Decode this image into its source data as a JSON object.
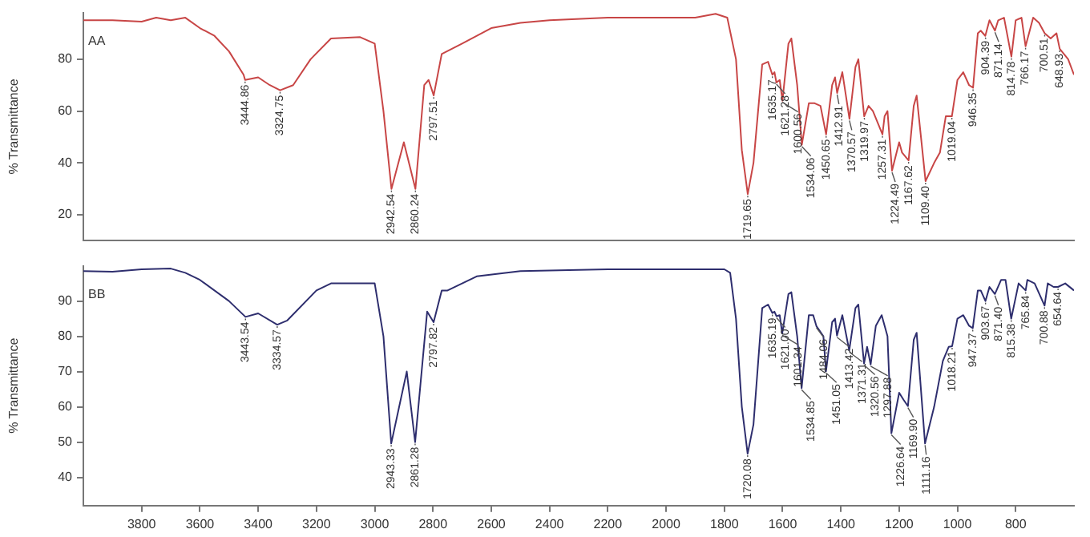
{
  "chart_data": [
    {
      "type": "line",
      "ylabel": "% Transmittance",
      "xlim": [
        4000,
        600
      ],
      "xticks": [
        3800,
        3600,
        3400,
        3200,
        3000,
        2800,
        2600,
        2400,
        2200,
        2000,
        1800,
        1600,
        1400,
        1200,
        1000,
        800
      ],
      "ylim": [
        10,
        98
      ],
      "yticks": [
        20,
        40,
        60,
        80
      ],
      "tick_labels": "y",
      "grid": false,
      "legend": false,
      "marker": "none",
      "line_style": "solid",
      "series": [
        {
          "color": "#c84646",
          "x": [
            4000,
            3900,
            3800,
            3750,
            3700,
            3650,
            3600,
            3550,
            3500,
            3450,
            3444.86,
            3400,
            3360,
            3324.75,
            3280,
            3220,
            3150,
            3050,
            3000,
            2970,
            2942.54,
            2900,
            2860.24,
            2830,
            2815,
            2797.51,
            2770,
            2700,
            2600,
            2500,
            2400,
            2200,
            2000,
            1900,
            1830,
            1790,
            1760,
            1740,
            1719.65,
            1700,
            1670,
            1650,
            1635.17,
            1628,
            1621.28,
            1610,
            1600.56,
            1580,
            1570,
            1550,
            1534.06,
            1510,
            1490,
            1470,
            1450.65,
            1430,
            1420,
            1412.91,
            1395,
            1370.57,
            1350,
            1340,
            1319.97,
            1305,
            1290,
            1257.31,
            1250,
            1240,
            1224.49,
            1200,
            1190,
            1167.62,
            1150,
            1140,
            1109.4,
            1080,
            1060,
            1040,
            1019.04,
            1000,
            980,
            960,
            946.35,
            930,
            920,
            904.39,
            890,
            871.14,
            860,
            840,
            814.78,
            800,
            780,
            766.17,
            740,
            720,
            700.51,
            680,
            660,
            648.93,
            620,
            600
          ],
          "values": [
            95,
            95,
            94.5,
            96,
            95,
            96,
            92,
            89,
            83,
            74,
            72,
            73,
            70,
            68,
            70,
            80,
            88,
            88.5,
            86,
            60,
            30,
            48,
            30,
            70,
            72,
            66,
            82,
            86,
            92,
            94,
            95,
            96,
            96,
            96,
            97.5,
            96,
            80,
            45,
            28,
            40,
            78,
            79,
            74,
            75,
            71,
            72,
            64,
            86,
            88,
            70,
            47,
            63,
            63,
            62,
            51,
            70,
            73,
            67,
            75,
            57,
            77,
            80,
            58,
            62,
            60,
            51,
            58,
            60,
            37,
            48,
            44,
            41,
            62,
            66,
            33,
            40,
            44,
            58,
            58,
            72,
            75,
            70,
            69,
            90,
            91,
            89,
            95,
            91,
            95,
            96,
            81,
            95,
            96,
            85,
            96,
            94,
            90,
            88,
            90,
            84,
            80,
            74
          ]
        }
      ],
      "annotations": [
        "AA",
        {
          "text": "3444.86",
          "x": 3444.86,
          "y": 72
        },
        {
          "text": "3324.75",
          "x": 3324.75,
          "y": 68
        },
        {
          "text": "2942.54",
          "x": 2942.54,
          "y": 30
        },
        {
          "text": "2860.24",
          "x": 2860.24,
          "y": 30
        },
        {
          "text": "2797.51",
          "x": 2797.51,
          "y": 66
        },
        {
          "text": "1719.65",
          "x": 1719.65,
          "y": 28
        },
        {
          "text": "1635.17",
          "x": 1635.17,
          "y": 74
        },
        {
          "text": "1621.28",
          "x": 1621.28,
          "y": 71
        },
        {
          "text": "1600.56",
          "x": 1600.56,
          "y": 64
        },
        {
          "text": "1534.06",
          "x": 1534.06,
          "y": 47
        },
        {
          "text": "1450.65",
          "x": 1450.65,
          "y": 51
        },
        {
          "text": "1412.91",
          "x": 1412.91,
          "y": 67
        },
        {
          "text": "1370.57",
          "x": 1370.57,
          "y": 57
        },
        {
          "text": "1319.97",
          "x": 1319.97,
          "y": 58
        },
        {
          "text": "1257.31",
          "x": 1257.31,
          "y": 51
        },
        {
          "text": "1224.49",
          "x": 1224.49,
          "y": 37
        },
        {
          "text": "1167.62",
          "x": 1167.62,
          "y": 41
        },
        {
          "text": "1109.40",
          "x": 1109.4,
          "y": 33
        },
        {
          "text": "1019.04",
          "x": 1019.04,
          "y": 58
        },
        {
          "text": "946.35",
          "x": 946.35,
          "y": 69
        },
        {
          "text": "904.39",
          "x": 904.39,
          "y": 89
        },
        {
          "text": "871.14",
          "x": 871.14,
          "y": 91
        },
        {
          "text": "814.78",
          "x": 814.78,
          "y": 81
        },
        {
          "text": "766.17",
          "x": 766.17,
          "y": 85
        },
        {
          "text": "700.51",
          "x": 700.51,
          "y": 90
        },
        {
          "text": "648.93",
          "x": 648.93,
          "y": 84
        }
      ]
    },
    {
      "type": "line",
      "ylabel": "% Transmittance",
      "xlim": [
        4000,
        600
      ],
      "xticks": [
        3800,
        3600,
        3400,
        3200,
        3000,
        2800,
        2600,
        2400,
        2200,
        2000,
        1800,
        1600,
        1400,
        1200,
        1000,
        800
      ],
      "ylim": [
        32,
        100
      ],
      "yticks": [
        40,
        50,
        60,
        70,
        80,
        90
      ],
      "grid": false,
      "legend": false,
      "marker": "none",
      "line_style": "solid",
      "series": [
        {
          "color": "#2e2e6e",
          "x": [
            4000,
            3900,
            3800,
            3700,
            3650,
            3600,
            3500,
            3443.54,
            3400,
            3334.57,
            3300,
            3200,
            3150,
            3000,
            2970,
            2943.33,
            2890,
            2861.28,
            2820,
            2797.82,
            2770,
            2750,
            2650,
            2500,
            2200,
            1800,
            1780,
            1760,
            1740,
            1720.08,
            1700,
            1670,
            1650,
            1635.19,
            1628,
            1621,
            1610,
            1601.34,
            1580,
            1570,
            1550,
            1534.85,
            1510,
            1495,
            1484.06,
            1460,
            1451.05,
            1430,
            1420,
            1413.42,
            1395,
            1371.31,
            1350,
            1340,
            1320.56,
            1310,
            1297.88,
            1280,
            1260,
            1240,
            1226.64,
            1200,
            1185,
            1169.9,
            1150,
            1140,
            1111.16,
            1080,
            1050,
            1030,
            1018.21,
            1000,
            980,
            960,
            947.37,
            930,
            920,
            903.67,
            890,
            871.4,
            850,
            835,
            815.38,
            790,
            765.84,
            760,
            735,
            700.88,
            690,
            670,
            654.64,
            630,
            600
          ],
          "values": [
            98.5,
            98.3,
            99,
            99.2,
            98,
            96,
            90,
            85.5,
            86.5,
            83.3,
            84.5,
            93,
            95,
            95,
            80,
            49.6,
            70,
            50,
            87,
            84,
            93,
            93,
            97,
            98.5,
            99,
            99,
            98,
            85,
            60,
            46.7,
            55,
            88,
            89,
            86.6,
            87,
            85.7,
            86,
            80.8,
            92,
            92.5,
            80,
            65.3,
            86,
            86,
            82.9,
            80,
            70.1,
            84,
            85,
            80.2,
            86,
            76,
            88,
            89,
            72.3,
            77,
            72,
            83,
            86,
            80,
            52.5,
            64,
            62,
            60.2,
            79,
            81,
            49.6,
            60,
            73,
            77,
            77.2,
            85,
            86,
            83,
            82.3,
            93,
            93,
            90,
            94,
            92,
            96,
            96,
            85,
            95,
            93,
            96,
            95,
            88.7,
            95,
            94,
            94,
            95,
            93
          ]
        }
      ],
      "annotations": [
        "BB",
        {
          "text": "3443.54",
          "x": 3443.54,
          "y": 85.5
        },
        {
          "text": "3334.57",
          "x": 3334.57,
          "y": 83.3
        },
        {
          "text": "2943.33",
          "x": 2943.33,
          "y": 49.6
        },
        {
          "text": "2861.28",
          "x": 2861.28,
          "y": 50
        },
        {
          "text": "2797.82",
          "x": 2797.82,
          "y": 84
        },
        {
          "text": "1720.08",
          "x": 1720.08,
          "y": 46.7
        },
        {
          "text": "1635.19",
          "x": 1635.19,
          "y": 86.6
        },
        {
          "text": "1621.00",
          "x": 1621,
          "y": 85.7
        },
        {
          "text": "1601.34",
          "x": 1601.34,
          "y": 80.8
        },
        {
          "text": "1534.85",
          "x": 1534.85,
          "y": 65.3
        },
        {
          "text": "1484.06",
          "x": 1484.06,
          "y": 82.9
        },
        {
          "text": "1451.05",
          "x": 1451.05,
          "y": 70.1
        },
        {
          "text": "1413.42",
          "x": 1413.42,
          "y": 80.2
        },
        {
          "text": "1371.31",
          "x": 1371.31,
          "y": 76
        },
        {
          "text": "1320.56",
          "x": 1320.56,
          "y": 72.3
        },
        {
          "text": "1297.88",
          "x": 1297.88,
          "y": 72
        },
        {
          "text": "1226.64",
          "x": 1226.64,
          "y": 52.5
        },
        {
          "text": "1169.90",
          "x": 1169.9,
          "y": 60.2
        },
        {
          "text": "1111.16",
          "x": 1111.16,
          "y": 49.6
        },
        {
          "text": "1018.21",
          "x": 1018.21,
          "y": 77.2
        },
        {
          "text": "947.37",
          "x": 947.37,
          "y": 82.3
        },
        {
          "text": "903.67",
          "x": 903.67,
          "y": 90
        },
        {
          "text": "871.40",
          "x": 871.4,
          "y": 92
        },
        {
          "text": "815.38",
          "x": 815.38,
          "y": 85
        },
        {
          "text": "765.84",
          "x": 765.84,
          "y": 93
        },
        {
          "text": "700.88",
          "x": 700.88,
          "y": 88.7
        },
        {
          "text": "654.64",
          "x": 654.64,
          "y": 94
        }
      ]
    }
  ]
}
